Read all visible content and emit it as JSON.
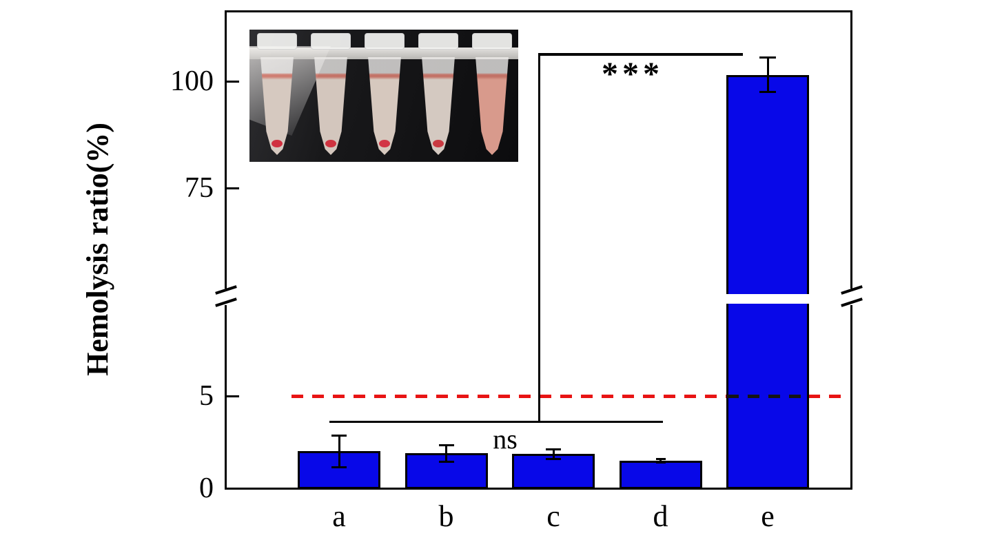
{
  "colors": {
    "bar": "#0808e8",
    "bar_edge": "#000000",
    "axis": "#000000",
    "threshold_red": "#e81414"
  },
  "y_axis": {
    "label": "Hemolysis ratio(%)",
    "ticks": [
      {
        "value": 0,
        "label": "0"
      },
      {
        "value": 5,
        "label": "5"
      },
      {
        "value": 75,
        "label": "75"
      },
      {
        "value": 100,
        "label": "100"
      }
    ]
  },
  "annotations": {
    "ns_label": "ns",
    "sig_label": "***"
  },
  "chart_data": {
    "type": "bar",
    "categories": [
      "a",
      "b",
      "c",
      "d",
      "e"
    ],
    "values": [
      2.0,
      1.9,
      1.85,
      1.5,
      101.5
    ],
    "errors": [
      0.85,
      0.45,
      0.25,
      0.1,
      4.0
    ],
    "title": "",
    "xlabel": "",
    "ylabel": "Hemolysis ratio(%)",
    "bar_color": "#0808e8",
    "y_ticks": [
      0,
      5,
      75,
      100
    ],
    "ylim_segments": [
      [
        0,
        10
      ],
      [
        51,
        112
      ]
    ],
    "axis_break": {
      "from": 10,
      "to": 51
    },
    "grid": false,
    "legend": null,
    "threshold_line": {
      "value": 5,
      "color": "#e81414",
      "style": "dashed"
    },
    "annotations": [
      {
        "text": "ns",
        "scope": "bars a-d"
      },
      {
        "text": "***",
        "scope": "bars a-d vs bar e"
      }
    ]
  },
  "inset": {
    "background": "#101012",
    "tubes": [
      {
        "liquid": "#d6c9c0",
        "pellet": "#d03040"
      },
      {
        "liquid": "#d3c6bd",
        "pellet": "#cf3340"
      },
      {
        "liquid": "#d6c8be",
        "pellet": "#d23545"
      },
      {
        "liquid": "#d4c9c1",
        "pellet": "#c93a42"
      },
      {
        "liquid": "#d89a8c",
        "pellet": ""
      }
    ]
  }
}
